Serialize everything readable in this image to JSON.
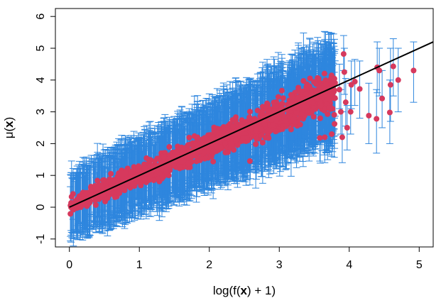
{
  "chart_data": {
    "type": "scatter",
    "xlabel": "log(f(x) + 1)",
    "xlabel_parts": {
      "prefix": "log(f(",
      "bold": "x",
      "suffix": ") + 1)"
    },
    "ylabel": "μ(x)",
    "ylabel_parts": {
      "prefix": "μ(",
      "bold": "x",
      "suffix": ")"
    },
    "xlim": [
      -0.2,
      5.2
    ],
    "ylim": [
      -1.25,
      6.25
    ],
    "xticks": [
      0,
      1,
      2,
      3,
      4,
      5
    ],
    "yticks": [
      -1,
      0,
      1,
      2,
      3,
      4,
      5,
      6
    ],
    "fit_line": {
      "intercept": 0.0,
      "slope": 1.0
    },
    "colors": {
      "points": "#d6395d",
      "errorbars": "#2e86de",
      "line": "#000000"
    },
    "main_band": {
      "description": "dense cloud of points with error bars along the diagonal",
      "x_start": 0.0,
      "x_end": 3.8,
      "n_points": 1400,
      "center_intercept": 0.05,
      "center_slope": 0.95,
      "point_spread": 0.35,
      "errorbar_halfwidth": {
        "at_start": 0.95,
        "at_end": 1.3
      }
    },
    "tail_points": [
      {
        "x": 3.92,
        "y": 4.82,
        "lo": 4.3,
        "hi": 5.4
      },
      {
        "x": 3.93,
        "y": 4.25,
        "lo": 3.55,
        "hi": 5.0
      },
      {
        "x": 3.86,
        "y": 3.7,
        "lo": 3.1,
        "hi": 4.5
      },
      {
        "x": 3.88,
        "y": 3.0,
        "lo": 2.3,
        "hi": 3.7
      },
      {
        "x": 3.79,
        "y": 2.62,
        "lo": 1.85,
        "hi": 3.4
      },
      {
        "x": 3.75,
        "y": 2.3,
        "lo": 1.6,
        "hi": 3.1
      },
      {
        "x": 3.65,
        "y": 2.2,
        "lo": 1.4,
        "hi": 2.95
      },
      {
        "x": 3.58,
        "y": 2.18,
        "lo": 1.45,
        "hi": 2.9
      },
      {
        "x": 3.95,
        "y": 3.3,
        "lo": 2.55,
        "hi": 4.05
      },
      {
        "x": 3.97,
        "y": 2.5,
        "lo": 1.8,
        "hi": 3.2
      },
      {
        "x": 3.9,
        "y": 2.2,
        "lo": 1.4,
        "hi": 3.0
      },
      {
        "x": 4.02,
        "y": 3.0,
        "lo": 2.3,
        "hi": 3.9
      },
      {
        "x": 4.03,
        "y": 3.85,
        "lo": 3.1,
        "hi": 4.6
      },
      {
        "x": 4.08,
        "y": 3.95,
        "lo": 3.2,
        "hi": 4.65
      },
      {
        "x": 4.15,
        "y": 3.72,
        "lo": 2.8,
        "hi": 4.6
      },
      {
        "x": 4.28,
        "y": 2.88,
        "lo": 2.0,
        "hi": 3.9
      },
      {
        "x": 4.39,
        "y": 2.78,
        "lo": 1.7,
        "hi": 3.7
      },
      {
        "x": 4.4,
        "y": 4.4,
        "lo": 3.6,
        "hi": 5.2
      },
      {
        "x": 4.43,
        "y": 4.3,
        "lo": 3.5,
        "hi": 5.0
      },
      {
        "x": 4.47,
        "y": 3.42,
        "lo": 2.5,
        "hi": 4.3
      },
      {
        "x": 4.58,
        "y": 2.98,
        "lo": 2.0,
        "hi": 4.0
      },
      {
        "x": 4.59,
        "y": 3.85,
        "lo": 2.7,
        "hi": 5.0
      },
      {
        "x": 4.63,
        "y": 4.43,
        "lo": 3.5,
        "hi": 5.3
      },
      {
        "x": 4.7,
        "y": 4.0,
        "lo": 3.0,
        "hi": 5.0
      },
      {
        "x": 4.92,
        "y": 4.3,
        "lo": 3.3,
        "hi": 5.2
      },
      {
        "x": 2.58,
        "y": 1.45,
        "lo": 0.7,
        "hi": 2.4
      },
      {
        "x": 3.3,
        "y": 2.6,
        "lo": 1.6,
        "hi": 3.8
      }
    ]
  }
}
